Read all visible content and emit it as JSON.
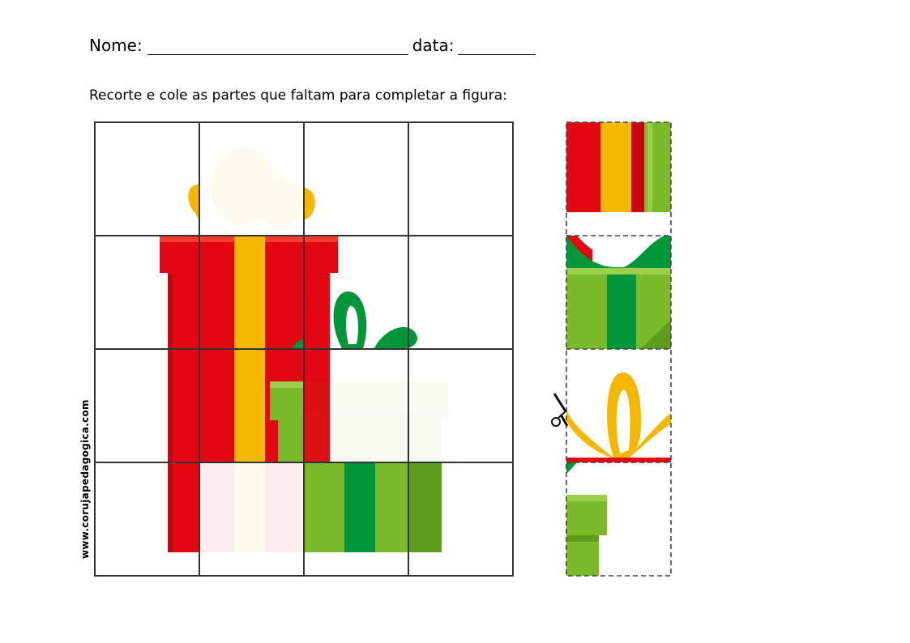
{
  "worksheet": {
    "name_label": "Nome:",
    "date_label": "data:",
    "instruction": "Recorte e cole as partes que faltam para completar a figura:",
    "credit": "www.corujapedagogica.com"
  },
  "colors": {
    "red": "#e30613",
    "red_dark": "#c70510",
    "yellow": "#f5b800",
    "green": "#7ab929",
    "green_dark": "#009639",
    "green_shadow": "#5f9d1f"
  },
  "puzzle": {
    "rows": 4,
    "columns": 4,
    "missing_pieces": 4
  },
  "icons": {
    "scissors": "scissors-icon"
  }
}
